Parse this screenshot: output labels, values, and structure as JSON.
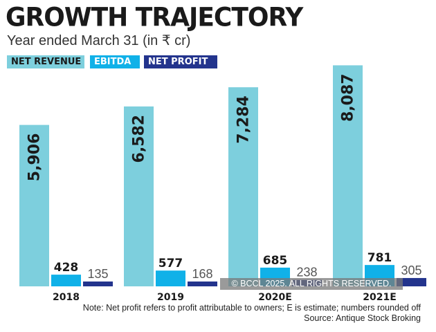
{
  "header": {
    "title": "GROWTH TRAJECTORY",
    "subtitle": "Year ended March 31 (in ₹ cr)"
  },
  "legend": [
    {
      "label": "NET REVENUE",
      "color": "#7dcfdd",
      "text_color": "#1a1a1a"
    },
    {
      "label": "EBITDA",
      "color": "#10b1e8",
      "text_color": "#ffffff"
    },
    {
      "label": "NET PROFIT",
      "color": "#23348d",
      "text_color": "#ffffff"
    }
  ],
  "chart_data": {
    "type": "bar",
    "categories": [
      "2018",
      "2019",
      "2020E",
      "2021E"
    ],
    "series": [
      {
        "name": "NET REVENUE",
        "color": "#7dcfdd",
        "values": [
          5906,
          6582,
          7284,
          8087
        ],
        "labels": [
          "5,906",
          "6,582",
          "7,284",
          "8,087"
        ]
      },
      {
        "name": "EBITDA",
        "color": "#10b1e8",
        "values": [
          428,
          577,
          685,
          781
        ],
        "labels": [
          "428",
          "577",
          "685",
          "781"
        ]
      },
      {
        "name": "NET PROFIT",
        "color": "#23348d",
        "values": [
          135,
          168,
          238,
          305
        ],
        "labels": [
          "135",
          "168",
          "238",
          "305"
        ]
      }
    ],
    "ylim": [
      0,
      8300
    ],
    "title": "GROWTH TRAJECTORY",
    "ylabel": "",
    "xlabel": ""
  },
  "footer": {
    "note": "Note: Net profit refers to profit attributable to owners; E is estimate; numbers rounded off",
    "source": "Source: Antique Stock Broking",
    "watermark": "© BCCL 2025. ALL RIGHTS RESERVED."
  }
}
